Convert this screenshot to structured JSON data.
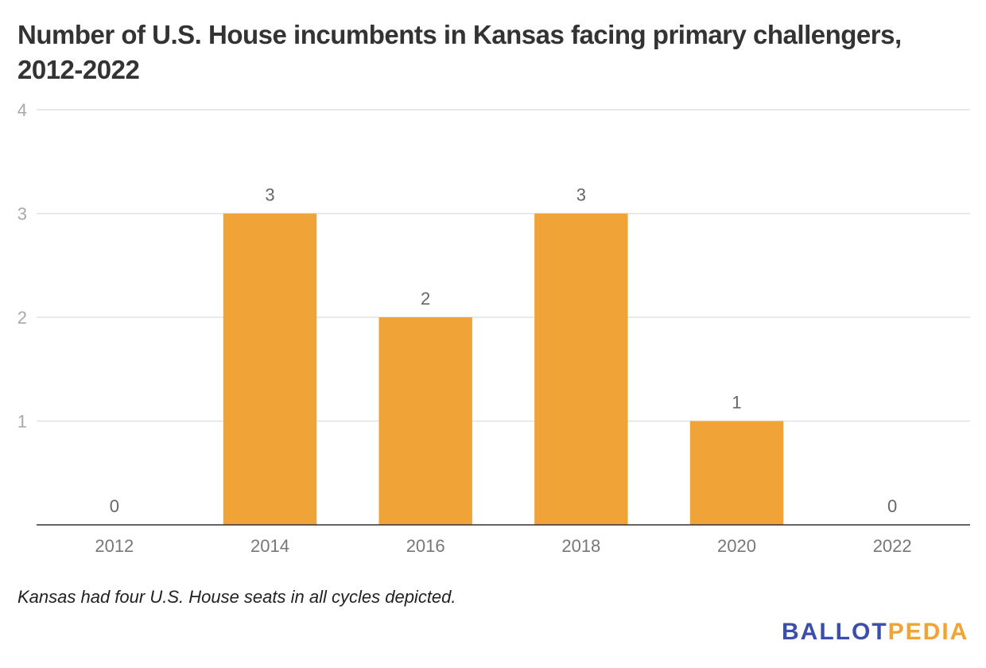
{
  "chart_data": {
    "type": "bar",
    "title": "Number of U.S. House incumbents in Kansas facing primary challengers, 2012-2022",
    "categories": [
      "2012",
      "2014",
      "2016",
      "2018",
      "2020",
      "2022"
    ],
    "values": [
      0,
      3,
      2,
      3,
      1,
      0
    ],
    "ylim": [
      0,
      4
    ],
    "yticks": [
      1,
      2,
      3,
      4
    ],
    "grid": true,
    "bar_color": "#f0a336",
    "note": "Kansas had four U.S. House seats in all cycles depicted."
  },
  "logo": {
    "part1": "BALLOT",
    "part2": "PEDIA",
    "color1": "#3a4eaa",
    "color2": "#f0a336"
  }
}
